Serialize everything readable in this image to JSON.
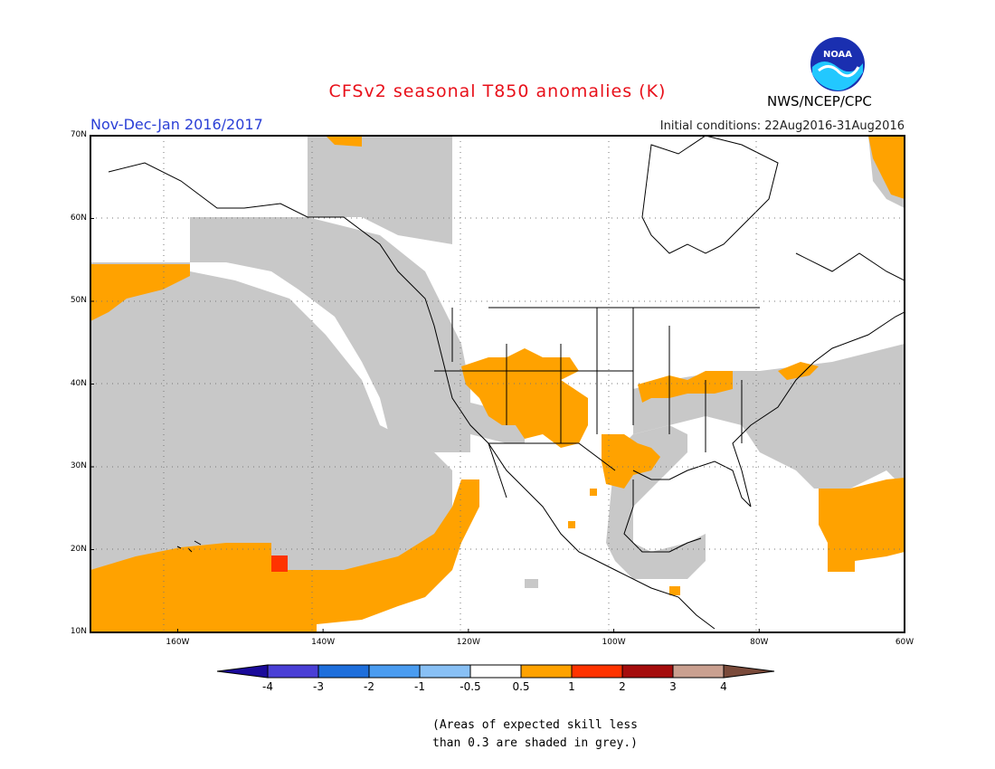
{
  "header": {
    "title": "CFSv2 seasonal T850 anomalies (K)",
    "agency": "NWS/NCEP/CPC",
    "period": "Nov-Dec-Jan 2016/2017",
    "initial_conditions": "Initial conditions: 22Aug2016-31Aug2016",
    "logo_text": "NOAA"
  },
  "map": {
    "lon_range": [
      -172,
      -60
    ],
    "lat_range": [
      10,
      70
    ],
    "lat_ticks": [
      "10N",
      "20N",
      "30N",
      "40N",
      "50N",
      "60N",
      "70N"
    ],
    "lat_values": [
      10,
      20,
      30,
      40,
      50,
      60,
      70
    ],
    "lon_ticks": [
      "160W",
      "140W",
      "120W",
      "100W",
      "80W",
      "60W"
    ],
    "lon_values": [
      -160,
      -140,
      -120,
      -100,
      -80,
      -60
    ],
    "colors": {
      "grey": "#c8c8c8",
      "orange": "#ffa200",
      "red": "#ff3300",
      "land_outline": "#000000"
    }
  },
  "colorbar": {
    "labels": [
      "-4",
      "-3",
      "-2",
      "-1",
      "-0.5",
      "0.5",
      "1",
      "2",
      "3",
      "4"
    ],
    "colors": [
      "#1a0a9a",
      "#4a3fd6",
      "#1e6fdc",
      "#4a9cf0",
      "#88c0f5",
      "#ffffff",
      "#ffa200",
      "#ff3300",
      "#a50d0d",
      "#caa090",
      "#7a4a3a"
    ]
  },
  "note": {
    "line1": "(Areas of expected skill less",
    "line2": "than 0.3 are shaded in grey.)"
  }
}
